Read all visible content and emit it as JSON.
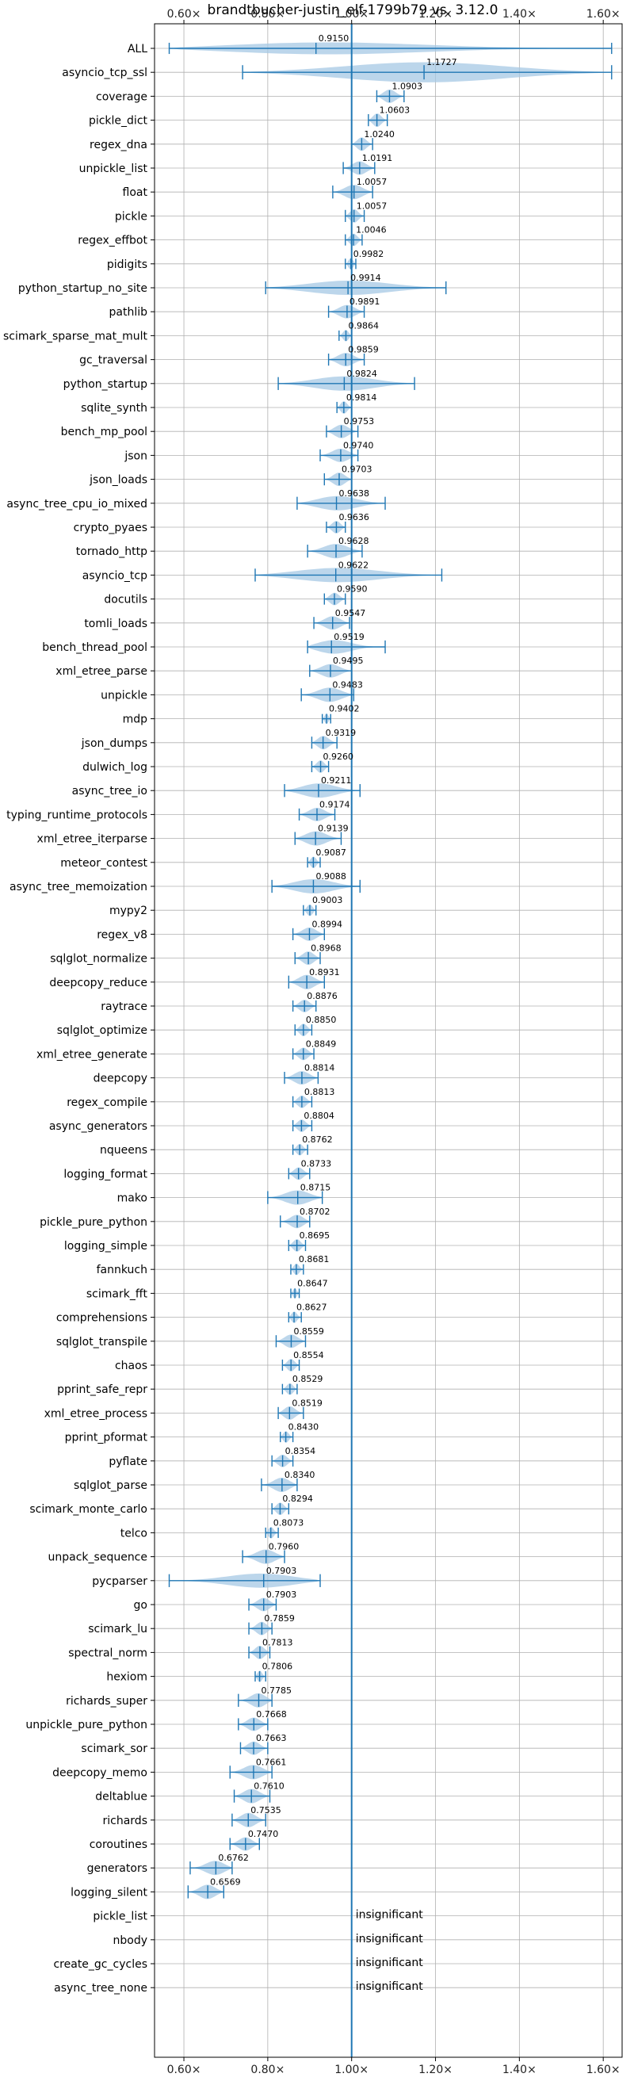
{
  "chart_data": {
    "type": "violin",
    "title": "brandtbucher-justin_elf-1799b79 vs. 3.12.0",
    "xlim": [
      0.53,
      1.645
    ],
    "x_ticks": [
      0.6,
      0.8,
      1.0,
      1.2,
      1.4,
      1.6
    ],
    "x_tick_labels": [
      "0.60×",
      "0.80×",
      "1.00×",
      "1.20×",
      "1.40×",
      "1.60×"
    ],
    "reference_line": 1.0,
    "grid": true,
    "colors": {
      "violin": "#a6c8e4",
      "marks": "#1f77b4",
      "grid": "#b0b0b0"
    },
    "insignificant_label": "insignificant",
    "benchmarks": [
      {
        "name": "ALL",
        "mean": 0.915,
        "mean_label": "0.9150",
        "min": 0.565,
        "max": 1.62,
        "half_width": 0.26
      },
      {
        "name": "asyncio_tcp_ssl",
        "mean": 1.1727,
        "mean_label": "1.1727",
        "min": 0.74,
        "max": 1.62,
        "half_width": 0.42
      },
      {
        "name": "coverage",
        "mean": 1.0903,
        "mean_label": "1.0903",
        "min": 1.06,
        "max": 1.125,
        "half_width": 0.28
      },
      {
        "name": "pickle_dict",
        "mean": 1.0603,
        "mean_label": "1.0603",
        "min": 1.04,
        "max": 1.085,
        "half_width": 0.28
      },
      {
        "name": "regex_dna",
        "mean": 1.024,
        "mean_label": "1.0240",
        "min": 1.0,
        "max": 1.05,
        "half_width": 0.28
      },
      {
        "name": "unpickle_list",
        "mean": 1.0191,
        "mean_label": "1.0191",
        "min": 0.98,
        "max": 1.055,
        "half_width": 0.28
      },
      {
        "name": "float",
        "mean": 1.0057,
        "mean_label": "1.0057",
        "min": 0.955,
        "max": 1.05,
        "half_width": 0.3
      },
      {
        "name": "pickle",
        "mean": 1.0057,
        "mean_label": "1.0057",
        "min": 0.985,
        "max": 1.03,
        "half_width": 0.28
      },
      {
        "name": "regex_effbot",
        "mean": 1.0046,
        "mean_label": "1.0046",
        "min": 0.985,
        "max": 1.025,
        "half_width": 0.26
      },
      {
        "name": "pidigits",
        "mean": 0.9982,
        "mean_label": "0.9982",
        "min": 0.985,
        "max": 1.01,
        "half_width": 0.24
      },
      {
        "name": "python_startup_no_site",
        "mean": 0.9914,
        "mean_label": "0.9914",
        "min": 0.795,
        "max": 1.225,
        "half_width": 0.3
      },
      {
        "name": "pathlib",
        "mean": 0.9891,
        "mean_label": "0.9891",
        "min": 0.945,
        "max": 1.03,
        "half_width": 0.28
      },
      {
        "name": "scimark_sparse_mat_mult",
        "mean": 0.9864,
        "mean_label": "0.9864",
        "min": 0.97,
        "max": 1.0,
        "half_width": 0.24
      },
      {
        "name": "gc_traversal",
        "mean": 0.9859,
        "mean_label": "0.9859",
        "min": 0.945,
        "max": 1.03,
        "half_width": 0.28
      },
      {
        "name": "python_startup",
        "mean": 0.9824,
        "mean_label": "0.9824",
        "min": 0.825,
        "max": 1.15,
        "half_width": 0.3
      },
      {
        "name": "sqlite_synth",
        "mean": 0.9814,
        "mean_label": "0.9814",
        "min": 0.965,
        "max": 1.0,
        "half_width": 0.26
      },
      {
        "name": "bench_mp_pool",
        "mean": 0.9753,
        "mean_label": "0.9753",
        "min": 0.94,
        "max": 1.015,
        "half_width": 0.28
      },
      {
        "name": "json",
        "mean": 0.974,
        "mean_label": "0.9740",
        "min": 0.925,
        "max": 1.015,
        "half_width": 0.28
      },
      {
        "name": "json_loads",
        "mean": 0.9703,
        "mean_label": "0.9703",
        "min": 0.935,
        "max": 1.0,
        "half_width": 0.28
      },
      {
        "name": "async_tree_cpu_io_mixed",
        "mean": 0.9638,
        "mean_label": "0.9638",
        "min": 0.87,
        "max": 1.08,
        "half_width": 0.3
      },
      {
        "name": "crypto_pyaes",
        "mean": 0.9636,
        "mean_label": "0.9636",
        "min": 0.94,
        "max": 0.985,
        "half_width": 0.26
      },
      {
        "name": "tornado_http",
        "mean": 0.9628,
        "mean_label": "0.9628",
        "min": 0.895,
        "max": 1.025,
        "half_width": 0.3
      },
      {
        "name": "asyncio_tcp",
        "mean": 0.9622,
        "mean_label": "0.9622",
        "min": 0.77,
        "max": 1.215,
        "half_width": 0.3
      },
      {
        "name": "docutils",
        "mean": 0.959,
        "mean_label": "0.9590",
        "min": 0.935,
        "max": 0.985,
        "half_width": 0.26
      },
      {
        "name": "tomli_loads",
        "mean": 0.9547,
        "mean_label": "0.9547",
        "min": 0.91,
        "max": 0.995,
        "half_width": 0.28
      },
      {
        "name": "bench_thread_pool",
        "mean": 0.9519,
        "mean_label": "0.9519",
        "min": 0.895,
        "max": 1.08,
        "half_width": 0.3
      },
      {
        "name": "xml_etree_parse",
        "mean": 0.9495,
        "mean_label": "0.9495",
        "min": 0.9,
        "max": 1.0,
        "half_width": 0.28
      },
      {
        "name": "unpickle",
        "mean": 0.9483,
        "mean_label": "0.9483",
        "min": 0.88,
        "max": 1.005,
        "half_width": 0.3
      },
      {
        "name": "mdp",
        "mean": 0.9402,
        "mean_label": "0.9402",
        "min": 0.93,
        "max": 0.95,
        "half_width": 0.22
      },
      {
        "name": "json_dumps",
        "mean": 0.9319,
        "mean_label": "0.9319",
        "min": 0.905,
        "max": 0.965,
        "half_width": 0.28
      },
      {
        "name": "dulwich_log",
        "mean": 0.926,
        "mean_label": "0.9260",
        "min": 0.905,
        "max": 0.945,
        "half_width": 0.26
      },
      {
        "name": "async_tree_io",
        "mean": 0.9211,
        "mean_label": "0.9211",
        "min": 0.84,
        "max": 1.02,
        "half_width": 0.3
      },
      {
        "name": "typing_runtime_protocols",
        "mean": 0.9174,
        "mean_label": "0.9174",
        "min": 0.875,
        "max": 0.96,
        "half_width": 0.28
      },
      {
        "name": "xml_etree_iterparse",
        "mean": 0.9139,
        "mean_label": "0.9139",
        "min": 0.865,
        "max": 0.975,
        "half_width": 0.3
      },
      {
        "name": "meteor_contest",
        "mean": 0.9087,
        "mean_label": "0.9087",
        "min": 0.895,
        "max": 0.925,
        "half_width": 0.24
      },
      {
        "name": "async_tree_memoization",
        "mean": 0.9088,
        "mean_label": "0.9088",
        "min": 0.81,
        "max": 1.02,
        "half_width": 0.3
      },
      {
        "name": "mypy2",
        "mean": 0.9003,
        "mean_label": "0.9003",
        "min": 0.885,
        "max": 0.915,
        "half_width": 0.24
      },
      {
        "name": "regex_v8",
        "mean": 0.8994,
        "mean_label": "0.8994",
        "min": 0.86,
        "max": 0.935,
        "half_width": 0.28
      },
      {
        "name": "sqlglot_normalize",
        "mean": 0.8968,
        "mean_label": "0.8968",
        "min": 0.865,
        "max": 0.925,
        "half_width": 0.28
      },
      {
        "name": "deepcopy_reduce",
        "mean": 0.8931,
        "mean_label": "0.8931",
        "min": 0.85,
        "max": 0.935,
        "half_width": 0.3
      },
      {
        "name": "raytrace",
        "mean": 0.8876,
        "mean_label": "0.8876",
        "min": 0.86,
        "max": 0.915,
        "half_width": 0.26
      },
      {
        "name": "sqlglot_optimize",
        "mean": 0.885,
        "mean_label": "0.8850",
        "min": 0.865,
        "max": 0.905,
        "half_width": 0.26
      },
      {
        "name": "xml_etree_generate",
        "mean": 0.8849,
        "mean_label": "0.8849",
        "min": 0.86,
        "max": 0.91,
        "half_width": 0.26
      },
      {
        "name": "deepcopy",
        "mean": 0.8814,
        "mean_label": "0.8814",
        "min": 0.84,
        "max": 0.92,
        "half_width": 0.28
      },
      {
        "name": "regex_compile",
        "mean": 0.8813,
        "mean_label": "0.8813",
        "min": 0.86,
        "max": 0.905,
        "half_width": 0.26
      },
      {
        "name": "async_generators",
        "mean": 0.8804,
        "mean_label": "0.8804",
        "min": 0.86,
        "max": 0.905,
        "half_width": 0.26
      },
      {
        "name": "nqueens",
        "mean": 0.8762,
        "mean_label": "0.8762",
        "min": 0.86,
        "max": 0.895,
        "half_width": 0.24
      },
      {
        "name": "logging_format",
        "mean": 0.8733,
        "mean_label": "0.8733",
        "min": 0.85,
        "max": 0.9,
        "half_width": 0.26
      },
      {
        "name": "mako",
        "mean": 0.8715,
        "mean_label": "0.8715",
        "min": 0.8,
        "max": 0.93,
        "half_width": 0.3
      },
      {
        "name": "pickle_pure_python",
        "mean": 0.8702,
        "mean_label": "0.8702",
        "min": 0.83,
        "max": 0.9,
        "half_width": 0.28
      },
      {
        "name": "logging_simple",
        "mean": 0.8695,
        "mean_label": "0.8695",
        "min": 0.85,
        "max": 0.89,
        "half_width": 0.26
      },
      {
        "name": "fannkuch",
        "mean": 0.8681,
        "mean_label": "0.8681",
        "min": 0.855,
        "max": 0.885,
        "half_width": 0.24
      },
      {
        "name": "scimark_fft",
        "mean": 0.8647,
        "mean_label": "0.8647",
        "min": 0.855,
        "max": 0.875,
        "half_width": 0.22
      },
      {
        "name": "comprehensions",
        "mean": 0.8627,
        "mean_label": "0.8627",
        "min": 0.85,
        "max": 0.88,
        "half_width": 0.24
      },
      {
        "name": "sqlglot_transpile",
        "mean": 0.8559,
        "mean_label": "0.8559",
        "min": 0.82,
        "max": 0.89,
        "half_width": 0.28
      },
      {
        "name": "chaos",
        "mean": 0.8554,
        "mean_label": "0.8554",
        "min": 0.835,
        "max": 0.875,
        "half_width": 0.26
      },
      {
        "name": "pprint_safe_repr",
        "mean": 0.8529,
        "mean_label": "0.8529",
        "min": 0.835,
        "max": 0.87,
        "half_width": 0.24
      },
      {
        "name": "xml_etree_process",
        "mean": 0.8519,
        "mean_label": "0.8519",
        "min": 0.825,
        "max": 0.885,
        "half_width": 0.28
      },
      {
        "name": "pprint_pformat",
        "mean": 0.843,
        "mean_label": "0.8430",
        "min": 0.83,
        "max": 0.86,
        "half_width": 0.24
      },
      {
        "name": "pyflate",
        "mean": 0.8354,
        "mean_label": "0.8354",
        "min": 0.81,
        "max": 0.86,
        "half_width": 0.26
      },
      {
        "name": "sqlglot_parse",
        "mean": 0.834,
        "mean_label": "0.8340",
        "min": 0.785,
        "max": 0.87,
        "half_width": 0.3
      },
      {
        "name": "scimark_monte_carlo",
        "mean": 0.8294,
        "mean_label": "0.8294",
        "min": 0.81,
        "max": 0.85,
        "half_width": 0.26
      },
      {
        "name": "telco",
        "mean": 0.8073,
        "mean_label": "0.8073",
        "min": 0.795,
        "max": 0.825,
        "half_width": 0.24
      },
      {
        "name": "unpack_sequence",
        "mean": 0.796,
        "mean_label": "0.7960",
        "min": 0.74,
        "max": 0.84,
        "half_width": 0.3
      },
      {
        "name": "pycparser",
        "mean": 0.7903,
        "mean_label": "0.7903",
        "min": 0.565,
        "max": 0.925,
        "half_width": 0.3
      },
      {
        "name": "go",
        "mean": 0.7903,
        "mean_label": "0.7903",
        "min": 0.755,
        "max": 0.82,
        "half_width": 0.28
      },
      {
        "name": "scimark_lu",
        "mean": 0.7859,
        "mean_label": "0.7859",
        "min": 0.755,
        "max": 0.81,
        "half_width": 0.28
      },
      {
        "name": "spectral_norm",
        "mean": 0.7813,
        "mean_label": "0.7813",
        "min": 0.755,
        "max": 0.805,
        "half_width": 0.28
      },
      {
        "name": "hexiom",
        "mean": 0.7806,
        "mean_label": "0.7806",
        "min": 0.77,
        "max": 0.795,
        "half_width": 0.24
      },
      {
        "name": "richards_super",
        "mean": 0.7785,
        "mean_label": "0.7785",
        "min": 0.73,
        "max": 0.81,
        "half_width": 0.3
      },
      {
        "name": "unpickle_pure_python",
        "mean": 0.7668,
        "mean_label": "0.7668",
        "min": 0.73,
        "max": 0.8,
        "half_width": 0.28
      },
      {
        "name": "scimark_sor",
        "mean": 0.7663,
        "mean_label": "0.7663",
        "min": 0.735,
        "max": 0.8,
        "half_width": 0.28
      },
      {
        "name": "deepcopy_memo",
        "mean": 0.7661,
        "mean_label": "0.7661",
        "min": 0.71,
        "max": 0.81,
        "half_width": 0.3
      },
      {
        "name": "deltablue",
        "mean": 0.761,
        "mean_label": "0.7610",
        "min": 0.72,
        "max": 0.805,
        "half_width": 0.3
      },
      {
        "name": "richards",
        "mean": 0.7535,
        "mean_label": "0.7535",
        "min": 0.715,
        "max": 0.795,
        "half_width": 0.3
      },
      {
        "name": "coroutines",
        "mean": 0.747,
        "mean_label": "0.7470",
        "min": 0.71,
        "max": 0.78,
        "half_width": 0.28
      },
      {
        "name": "generators",
        "mean": 0.6762,
        "mean_label": "0.6762",
        "min": 0.615,
        "max": 0.715,
        "half_width": 0.3
      },
      {
        "name": "logging_silent",
        "mean": 0.6569,
        "mean_label": "0.6569",
        "min": 0.61,
        "max": 0.695,
        "half_width": 0.3
      },
      {
        "name": "pickle_list",
        "insignificant": true
      },
      {
        "name": "nbody",
        "insignificant": true
      },
      {
        "name": "create_gc_cycles",
        "insignificant": true
      },
      {
        "name": "async_tree_none",
        "insignificant": true
      }
    ]
  }
}
